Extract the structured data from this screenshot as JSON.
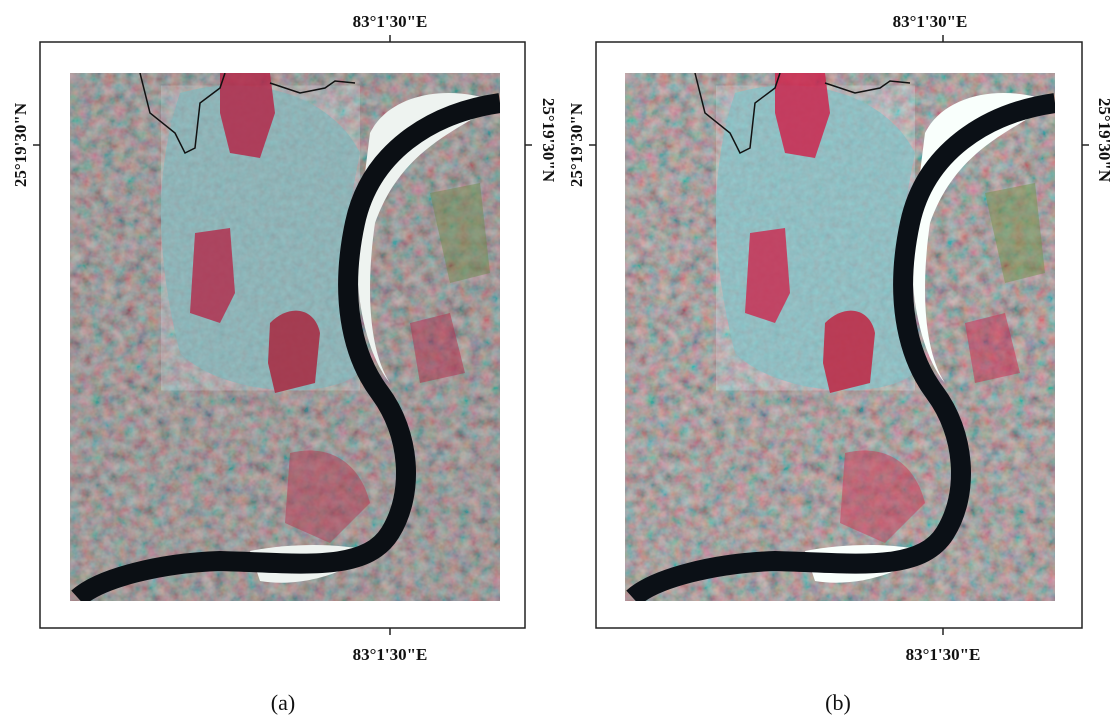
{
  "panels": [
    {
      "top_label": "83°1'30\"E",
      "bottom_label": "83°1'30\"E",
      "left_label": "25°19'30\"N",
      "right_label": "25°19'30\"N",
      "caption": "(a)"
    },
    {
      "top_label": "83°1'30\"E",
      "bottom_label": "83°1'30\"E",
      "left_label": "25°19'30\"N",
      "right_label": "25°19'30\"N",
      "caption": "(b)"
    }
  ]
}
